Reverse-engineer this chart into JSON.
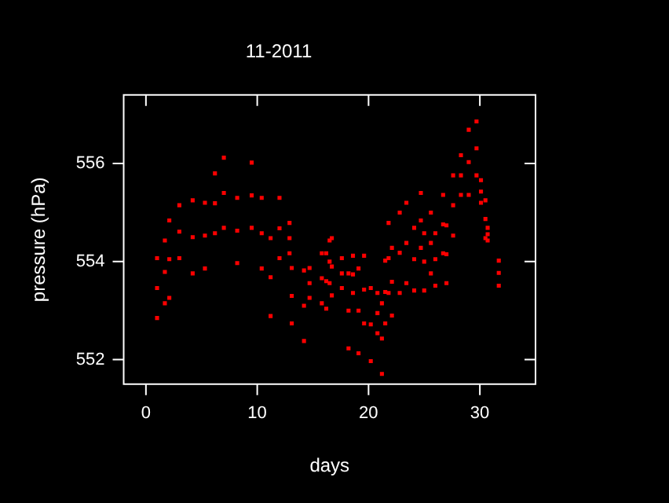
{
  "chart_data": {
    "type": "scatter",
    "title": "11-2011",
    "xlabel": "days",
    "ylabel": "pressure (hPa)",
    "color": "#ff0000",
    "marker": "square",
    "grid": false,
    "legend": false,
    "xlim": [
      -2,
      35
    ],
    "ylim": [
      551.5,
      557.4
    ],
    "xticks": [
      0,
      10,
      20,
      30
    ],
    "yticks": [
      552,
      554,
      556
    ],
    "x": [
      1.0,
      1.0,
      1.0,
      1.7,
      1.7,
      1.7,
      2.1,
      2.1,
      2.1,
      3.0,
      3.0,
      3.0,
      4.2,
      4.2,
      4.2,
      5.3,
      5.3,
      5.3,
      6.2,
      6.2,
      6.2,
      7.0,
      7.0,
      7.0,
      8.2,
      8.2,
      8.2,
      9.5,
      9.5,
      9.5,
      10.4,
      10.4,
      10.4,
      11.2,
      11.2,
      11.2,
      12.0,
      12.0,
      12.0,
      12.9,
      12.9,
      12.9,
      13.1,
      13.1,
      13.1,
      14.2,
      14.2,
      14.2,
      14.7,
      14.7,
      14.7,
      15.8,
      15.8,
      15.8,
      16.2,
      16.2,
      16.2,
      16.5,
      16.5,
      16.5,
      16.7,
      16.7,
      16.7,
      17.6,
      17.6,
      17.6,
      18.2,
      18.2,
      18.2,
      18.6,
      18.6,
      18.6,
      19.1,
      19.1,
      19.1,
      19.6,
      19.6,
      19.6,
      20.2,
      20.2,
      20.2,
      20.8,
      20.8,
      20.8,
      21.2,
      21.2,
      21.2,
      21.5,
      21.5,
      21.5,
      21.8,
      21.8,
      21.8,
      22.1,
      22.1,
      22.1,
      22.8,
      22.8,
      22.8,
      23.4,
      23.4,
      23.4,
      24.1,
      24.1,
      24.1,
      24.7,
      24.7,
      24.7,
      25.0,
      25.0,
      25.0,
      25.6,
      25.6,
      25.6,
      26.0,
      26.0,
      26.0,
      26.7,
      26.7,
      26.7,
      27.0,
      27.0,
      27.0,
      27.6,
      27.6,
      27.6,
      28.3,
      28.3,
      28.3,
      29.0,
      29.0,
      29.0,
      29.7,
      29.7,
      29.7,
      30.1,
      30.1,
      30.1,
      30.5,
      30.5,
      30.5,
      30.7,
      30.7,
      30.7,
      31.7,
      31.7,
      31.7
    ],
    "values": [
      554.07,
      553.46,
      552.85,
      554.43,
      553.79,
      553.15,
      554.84,
      554.05,
      553.26,
      555.15,
      554.61,
      554.07,
      555.25,
      554.5,
      553.76,
      555.2,
      554.53,
      553.86,
      555.8,
      555.19,
      554.58,
      556.12,
      555.4,
      554.69,
      555.3,
      554.63,
      553.97,
      556.02,
      555.35,
      554.69,
      555.3,
      554.58,
      553.86,
      554.48,
      553.68,
      552.89,
      555.3,
      554.68,
      554.07,
      554.79,
      554.48,
      554.17,
      553.87,
      553.3,
      552.74,
      553.82,
      553.1,
      552.38,
      553.87,
      553.56,
      553.26,
      554.17,
      553.66,
      553.15,
      554.17,
      553.6,
      553.04,
      554.43,
      554.0,
      553.56,
      554.48,
      553.9,
      553.31,
      554.07,
      553.76,
      553.46,
      553.76,
      553.0,
      552.23,
      554.12,
      553.74,
      553.36,
      553.86,
      553.0,
      552.13,
      554.12,
      553.43,
      552.74,
      553.46,
      552.72,
      551.97,
      553.36,
      552.95,
      552.54,
      553.15,
      552.43,
      551.71,
      554.02,
      553.38,
      552.74,
      554.79,
      554.07,
      553.36,
      554.28,
      553.59,
      552.9,
      555.0,
      554.18,
      553.36,
      555.2,
      554.38,
      553.56,
      554.69,
      554.05,
      553.41,
      555.4,
      554.84,
      554.28,
      554.58,
      554.0,
      553.41,
      555.0,
      554.38,
      553.76,
      554.58,
      554.05,
      553.51,
      555.36,
      554.76,
      554.17,
      554.74,
      554.15,
      553.56,
      555.76,
      555.15,
      554.53,
      556.17,
      555.76,
      555.36,
      556.69,
      556.03,
      555.36,
      556.86,
      556.31,
      555.76,
      555.66,
      555.43,
      555.2,
      555.25,
      554.87,
      554.48,
      554.69,
      554.56,
      554.43,
      554.02,
      553.77,
      553.51
    ]
  }
}
